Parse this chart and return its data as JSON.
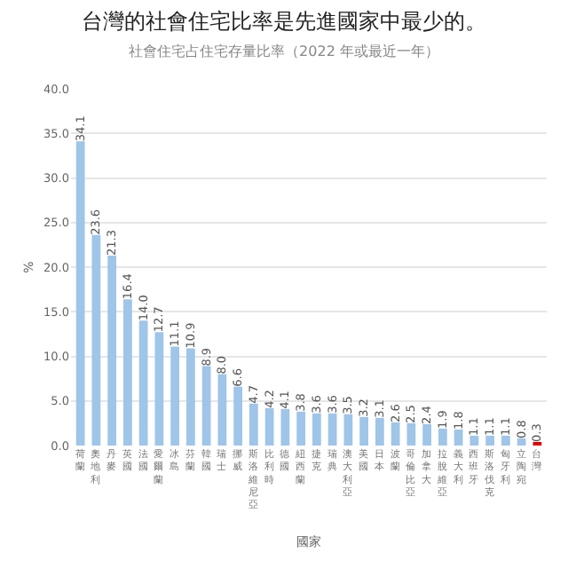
{
  "chart_data": {
    "type": "bar",
    "title": "台灣的社會住宅比率是先進國家中最少的。",
    "subtitle": "社會住宅占住宅存量比率（2022 年或最近一年）",
    "xlabel": "國家",
    "ylabel": "%",
    "categories": [
      "荷蘭",
      "奧地利",
      "丹麥",
      "英國",
      "法國",
      "愛爾蘭",
      "冰島",
      "芬蘭",
      "韓國",
      "瑞士",
      "挪威",
      "斯洛維尼亞",
      "比利時",
      "德國",
      "紐西蘭",
      "捷克",
      "瑞典",
      "澳大利亞",
      "美國",
      "日本",
      "波蘭",
      "哥倫比亞",
      "加拿大",
      "拉脫維亞",
      "義大利",
      "西班牙",
      "斯洛伐克",
      "匈牙利",
      "立陶宛",
      "台灣"
    ],
    "values": [
      34.1,
      23.6,
      21.3,
      16.4,
      14.0,
      12.7,
      11.1,
      10.9,
      8.9,
      8.0,
      6.6,
      4.7,
      4.2,
      4.1,
      3.8,
      3.6,
      3.6,
      3.5,
      3.2,
      3.1,
      2.6,
      2.5,
      2.4,
      1.9,
      1.8,
      1.1,
      1.1,
      1.1,
      0.8,
      0.3
    ],
    "colors": [
      "#9fc5e8",
      "#9fc5e8",
      "#9fc5e8",
      "#9fc5e8",
      "#9fc5e8",
      "#9fc5e8",
      "#9fc5e8",
      "#9fc5e8",
      "#9fc5e8",
      "#9fc5e8",
      "#9fc5e8",
      "#9fc5e8",
      "#9fc5e8",
      "#9fc5e8",
      "#9fc5e8",
      "#9fc5e8",
      "#9fc5e8",
      "#9fc5e8",
      "#9fc5e8",
      "#9fc5e8",
      "#9fc5e8",
      "#9fc5e8",
      "#9fc5e8",
      "#9fc5e8",
      "#9fc5e8",
      "#9fc5e8",
      "#9fc5e8",
      "#9fc5e8",
      "#9fc5e8",
      "#e00000"
    ],
    "ylim": [
      0,
      40
    ],
    "yticks": [
      {
        "value": 0,
        "label": "0.0"
      },
      {
        "value": 5,
        "label": "5.0"
      },
      {
        "value": 10,
        "label": "10.0"
      },
      {
        "value": 15,
        "label": "15.0"
      },
      {
        "value": 20,
        "label": "20.0"
      },
      {
        "value": 25,
        "label": "25.0"
      },
      {
        "value": 30,
        "label": "30.0"
      },
      {
        "value": 35,
        "label": "35.0"
      },
      {
        "value": 40,
        "label": "40.0"
      }
    ],
    "value_labels": [
      "34.1",
      "23.6",
      "21.3",
      "16.4",
      "14.0",
      "12.7",
      "11.1",
      "10.9",
      "8.9",
      "8.0",
      "6.6",
      "4.7",
      "4.2",
      "4.1",
      "3.8",
      "3.6",
      "3.6",
      "3.5",
      "3.2",
      "3.1",
      "2.6",
      "2.5",
      "2.4",
      "1.9",
      "1.8",
      "1.1",
      "1.1",
      "1.1",
      "0.8",
      "0.3"
    ],
    "grid": "y"
  }
}
